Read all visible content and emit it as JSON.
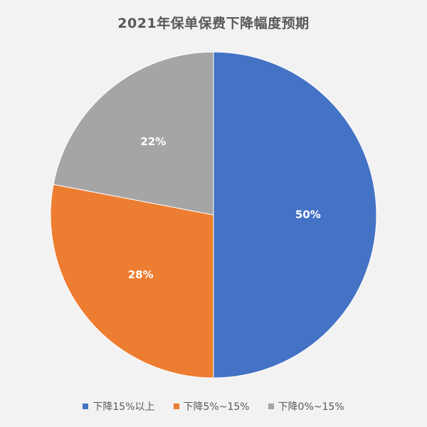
{
  "chart_data": {
    "type": "pie",
    "title": "2021年保单保费下降幅度预期",
    "series": [
      {
        "name": "下降15%以上",
        "value": 50,
        "label": "50%",
        "color": "#4472c4"
      },
      {
        "name": "下降5%~15%",
        "value": 28,
        "label": "28%",
        "color": "#ed7d31"
      },
      {
        "name": "下降0%~15%",
        "value": 22,
        "label": "22%",
        "color": "#a5a5a5"
      }
    ],
    "legend_position": "bottom"
  }
}
